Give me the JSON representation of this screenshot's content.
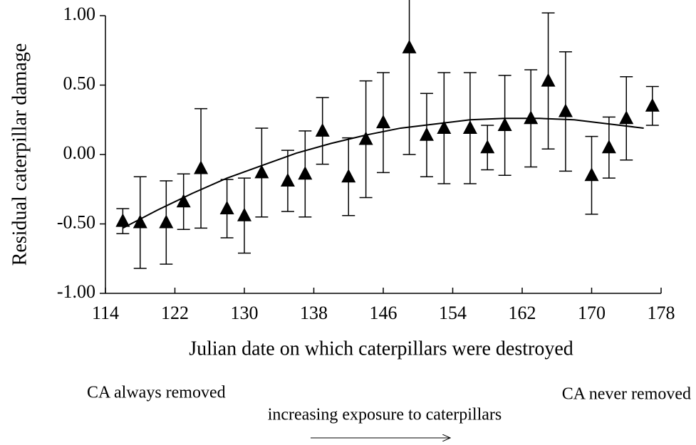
{
  "chart_data": {
    "type": "scatter",
    "x_label": "Julian date on which caterpillars were destroyed",
    "y_label": "Residual caterpillar damage",
    "annotations": [
      "CA always removed",
      "CA never removed",
      "increasing exposure to caterpillars"
    ],
    "x": [
      116,
      118,
      121,
      123,
      125,
      128,
      130,
      132,
      135,
      137,
      139,
      142,
      144,
      146,
      149,
      151,
      153,
      156,
      158,
      160,
      163,
      165,
      167,
      170,
      172,
      174,
      177
    ],
    "values": [
      -0.48,
      -0.49,
      -0.49,
      -0.34,
      -0.1,
      -0.39,
      -0.44,
      -0.13,
      -0.19,
      -0.14,
      0.17,
      -0.16,
      0.11,
      0.23,
      0.77,
      0.14,
      0.19,
      0.19,
      0.05,
      0.21,
      0.26,
      0.53,
      0.31,
      -0.15,
      0.05,
      0.26,
      0.35
    ],
    "errors": [
      0.09,
      0.33,
      0.3,
      0.2,
      0.43,
      0.21,
      0.27,
      0.32,
      0.22,
      0.31,
      0.24,
      0.28,
      0.42,
      0.36,
      0.77,
      0.3,
      0.4,
      0.4,
      0.16,
      0.36,
      0.35,
      0.49,
      0.43,
      0.28,
      0.22,
      0.3,
      0.14
    ],
    "color": "#000000",
    "fit": {
      "x": [
        116,
        120,
        124,
        128,
        132,
        136,
        140,
        144,
        148,
        152,
        156,
        160,
        164,
        168,
        172,
        176
      ],
      "values": [
        -0.53,
        -0.4,
        -0.28,
        -0.17,
        -0.08,
        0.01,
        0.08,
        0.14,
        0.19,
        0.22,
        0.25,
        0.26,
        0.26,
        0.25,
        0.22,
        0.19
      ]
    },
    "xlim": [
      114,
      178
    ],
    "xticks": [
      114,
      122,
      130,
      138,
      146,
      154,
      162,
      170,
      178
    ],
    "ylim": [
      -1,
      1
    ],
    "yticks": [
      {
        "value": -1,
        "label": "-1.00"
      },
      {
        "value": -0.5,
        "label": "-0.50"
      },
      {
        "value": 0,
        "label": "0.00"
      },
      {
        "value": 0.5,
        "label": "0.50"
      },
      {
        "value": 1,
        "label": "1.00"
      }
    ]
  }
}
